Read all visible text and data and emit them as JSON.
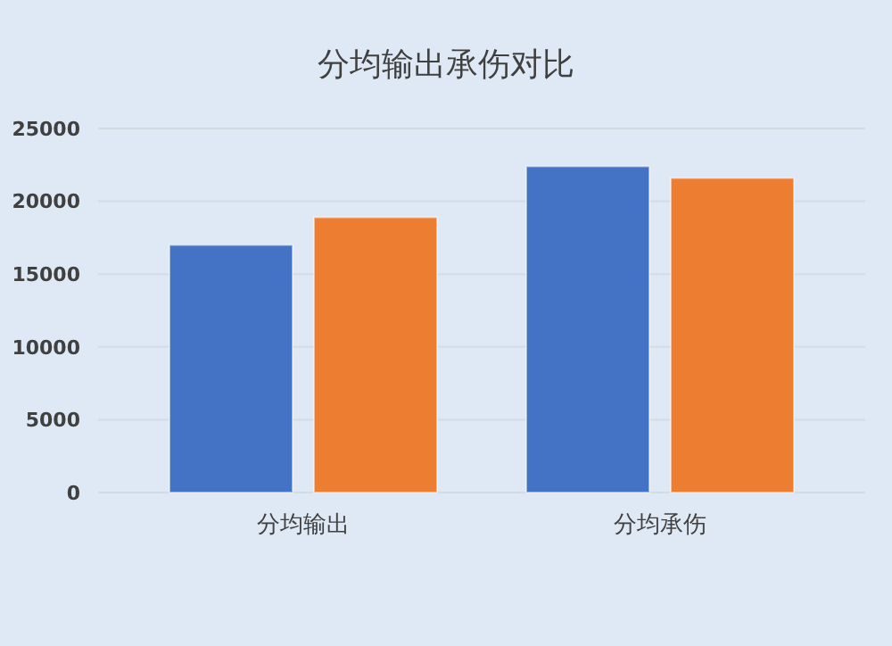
{
  "chart_data": {
    "type": "bar",
    "title": "分均输出承伤对比",
    "categories": [
      "分均输出",
      "分均承伤"
    ],
    "series": [
      {
        "color": "#4472c4",
        "values": [
          17000,
          22400
        ]
      },
      {
        "color": "#ed7d31",
        "values": [
          18900,
          21600
        ]
      }
    ],
    "ylim": [
      0,
      25000
    ],
    "yticks": [
      0,
      5000,
      10000,
      15000,
      20000,
      25000
    ],
    "grid": "y"
  }
}
